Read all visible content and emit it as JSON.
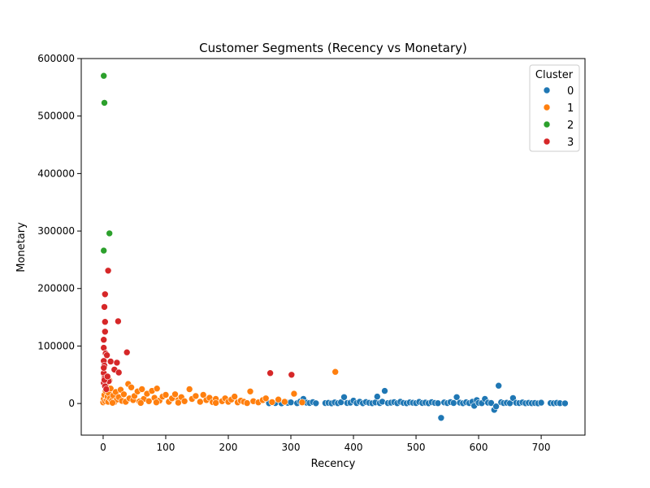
{
  "chart_data": {
    "type": "scatter",
    "title": "Customer Segments (Recency vs Monetary)",
    "xlabel": "Recency",
    "ylabel": "Monetary",
    "xlim": [
      -35,
      770
    ],
    "ylim": [
      -55000,
      600000
    ],
    "x_ticks": [
      0,
      100,
      200,
      300,
      400,
      500,
      600,
      700
    ],
    "y_ticks": [
      0,
      100000,
      200000,
      300000,
      400000,
      500000,
      600000
    ],
    "grid": false,
    "legend": {
      "title": "Cluster",
      "placement": "top-right"
    },
    "series": [
      {
        "name": "0",
        "color": "#1f77b4",
        "points": [
          [
            265,
            500
          ],
          [
            275,
            800
          ],
          [
            285,
            300
          ],
          [
            295,
            1200
          ],
          [
            300,
            2000
          ],
          [
            310,
            600
          ],
          [
            315,
            3500
          ],
          [
            320,
            8000
          ],
          [
            325,
            1500
          ],
          [
            330,
            900
          ],
          [
            335,
            2500
          ],
          [
            340,
            400
          ],
          [
            355,
            700
          ],
          [
            360,
            1100
          ],
          [
            365,
            300
          ],
          [
            370,
            1800
          ],
          [
            375,
            600
          ],
          [
            380,
            2200
          ],
          [
            385,
            11000
          ],
          [
            390,
            900
          ],
          [
            395,
            1400
          ],
          [
            400,
            5000
          ],
          [
            405,
            700
          ],
          [
            410,
            3000
          ],
          [
            415,
            500
          ],
          [
            420,
            2600
          ],
          [
            425,
            1200
          ],
          [
            430,
            400
          ],
          [
            435,
            1900
          ],
          [
            438,
            12000
          ],
          [
            442,
            800
          ],
          [
            446,
            3200
          ],
          [
            450,
            22000
          ],
          [
            455,
            700
          ],
          [
            460,
            1500
          ],
          [
            465,
            2400
          ],
          [
            470,
            600
          ],
          [
            475,
            3000
          ],
          [
            480,
            1000
          ],
          [
            485,
            500
          ],
          [
            490,
            2000
          ],
          [
            495,
            1300
          ],
          [
            500,
            700
          ],
          [
            505,
            2800
          ],
          [
            510,
            900
          ],
          [
            515,
            1600
          ],
          [
            520,
            400
          ],
          [
            525,
            2300
          ],
          [
            530,
            1000
          ],
          [
            535,
            600
          ],
          [
            540,
            -25000
          ],
          [
            545,
            1800
          ],
          [
            550,
            700
          ],
          [
            555,
            2500
          ],
          [
            560,
            900
          ],
          [
            565,
            11000
          ],
          [
            570,
            1400
          ],
          [
            575,
            500
          ],
          [
            580,
            2100
          ],
          [
            585,
            800
          ],
          [
            590,
            3000
          ],
          [
            593,
            -4000
          ],
          [
            597,
            6000
          ],
          [
            600,
            1200
          ],
          [
            605,
            600
          ],
          [
            610,
            8000
          ],
          [
            615,
            1500
          ],
          [
            620,
            900
          ],
          [
            625,
            -11000
          ],
          [
            628,
            -5000
          ],
          [
            632,
            31000
          ],
          [
            636,
            2200
          ],
          [
            640,
            800
          ],
          [
            645,
            1300
          ],
          [
            650,
            500
          ],
          [
            655,
            9500
          ],
          [
            660,
            1100
          ],
          [
            665,
            700
          ],
          [
            670,
            1800
          ],
          [
            675,
            400
          ],
          [
            680,
            1200
          ],
          [
            685,
            600
          ],
          [
            690,
            900
          ],
          [
            695,
            300
          ],
          [
            700,
            1500
          ],
          [
            715,
            700
          ],
          [
            720,
            400
          ],
          [
            725,
            1100
          ],
          [
            730,
            600
          ],
          [
            738,
            300
          ]
        ]
      },
      {
        "name": "1",
        "color": "#ff7f0e",
        "points": [
          [
            0,
            2000
          ],
          [
            1,
            8000
          ],
          [
            2,
            15000
          ],
          [
            3,
            4000
          ],
          [
            4,
            22000
          ],
          [
            5,
            30000
          ],
          [
            6,
            6000
          ],
          [
            7,
            12000
          ],
          [
            8,
            3000
          ],
          [
            9,
            18000
          ],
          [
            10,
            40000
          ],
          [
            11,
            9000
          ],
          [
            12,
            26000
          ],
          [
            14,
            5000
          ],
          [
            16,
            14000
          ],
          [
            18,
            2500
          ],
          [
            20,
            20000
          ],
          [
            22,
            7000
          ],
          [
            25,
            11000
          ],
          [
            28,
            24000
          ],
          [
            30,
            4500
          ],
          [
            33,
            16000
          ],
          [
            36,
            3000
          ],
          [
            40,
            34000
          ],
          [
            42,
            9000
          ],
          [
            45,
            28000
          ],
          [
            48,
            6000
          ],
          [
            50,
            13000
          ],
          [
            55,
            21000
          ],
          [
            58,
            3500
          ],
          [
            62,
            25000
          ],
          [
            65,
            8000
          ],
          [
            70,
            17000
          ],
          [
            73,
            4000
          ],
          [
            78,
            22000
          ],
          [
            82,
            10000
          ],
          [
            86,
            26000
          ],
          [
            90,
            5000
          ],
          [
            95,
            12000
          ],
          [
            100,
            15000
          ],
          [
            105,
            3000
          ],
          [
            110,
            9000
          ],
          [
            115,
            16000
          ],
          [
            120,
            6000
          ],
          [
            125,
            11000
          ],
          [
            130,
            4000
          ],
          [
            138,
            25000
          ],
          [
            142,
            8000
          ],
          [
            148,
            13000
          ],
          [
            155,
            3000
          ],
          [
            160,
            15000
          ],
          [
            165,
            6000
          ],
          [
            170,
            10000
          ],
          [
            175,
            2500
          ],
          [
            180,
            8000
          ],
          [
            190,
            4000
          ],
          [
            195,
            9000
          ],
          [
            200,
            3000
          ],
          [
            205,
            7000
          ],
          [
            210,
            12000
          ],
          [
            215,
            2000
          ],
          [
            220,
            5000
          ],
          [
            225,
            3000
          ],
          [
            235,
            21000
          ],
          [
            240,
            4000
          ],
          [
            248,
            2000
          ],
          [
            255,
            6000
          ],
          [
            260,
            9000
          ],
          [
            270,
            2500
          ],
          [
            280,
            7000
          ],
          [
            290,
            3000
          ],
          [
            305,
            17000
          ],
          [
            318,
            2000
          ],
          [
            371,
            55000
          ],
          [
            60,
            1000
          ],
          [
            120,
            1500
          ],
          [
            180,
            1000
          ],
          [
            230,
            800
          ],
          [
            85,
            2000
          ],
          [
            15,
            1200
          ]
        ]
      },
      {
        "name": "2",
        "color": "#2ca02c",
        "points": [
          [
            1,
            570000
          ],
          [
            2,
            523000
          ],
          [
            10,
            296000
          ],
          [
            1,
            266000
          ]
        ]
      },
      {
        "name": "3",
        "color": "#d62728",
        "points": [
          [
            8,
            231000
          ],
          [
            3,
            190000
          ],
          [
            2,
            168000
          ],
          [
            3,
            142000
          ],
          [
            24,
            143000
          ],
          [
            3,
            125000
          ],
          [
            1,
            111000
          ],
          [
            1,
            97000
          ],
          [
            4,
            87000
          ],
          [
            38,
            89000
          ],
          [
            6,
            84000
          ],
          [
            1,
            74000
          ],
          [
            12,
            73000
          ],
          [
            22,
            71000
          ],
          [
            2,
            66000
          ],
          [
            18,
            59000
          ],
          [
            25,
            54000
          ],
          [
            1,
            53000
          ],
          [
            267,
            53000
          ],
          [
            301,
            50000
          ],
          [
            2,
            44000
          ],
          [
            9,
            39000
          ],
          [
            1,
            36000
          ],
          [
            3,
            30000
          ],
          [
            5,
            25000
          ],
          [
            2,
            41000
          ],
          [
            7,
            47000
          ],
          [
            1,
            62000
          ]
        ]
      }
    ]
  }
}
